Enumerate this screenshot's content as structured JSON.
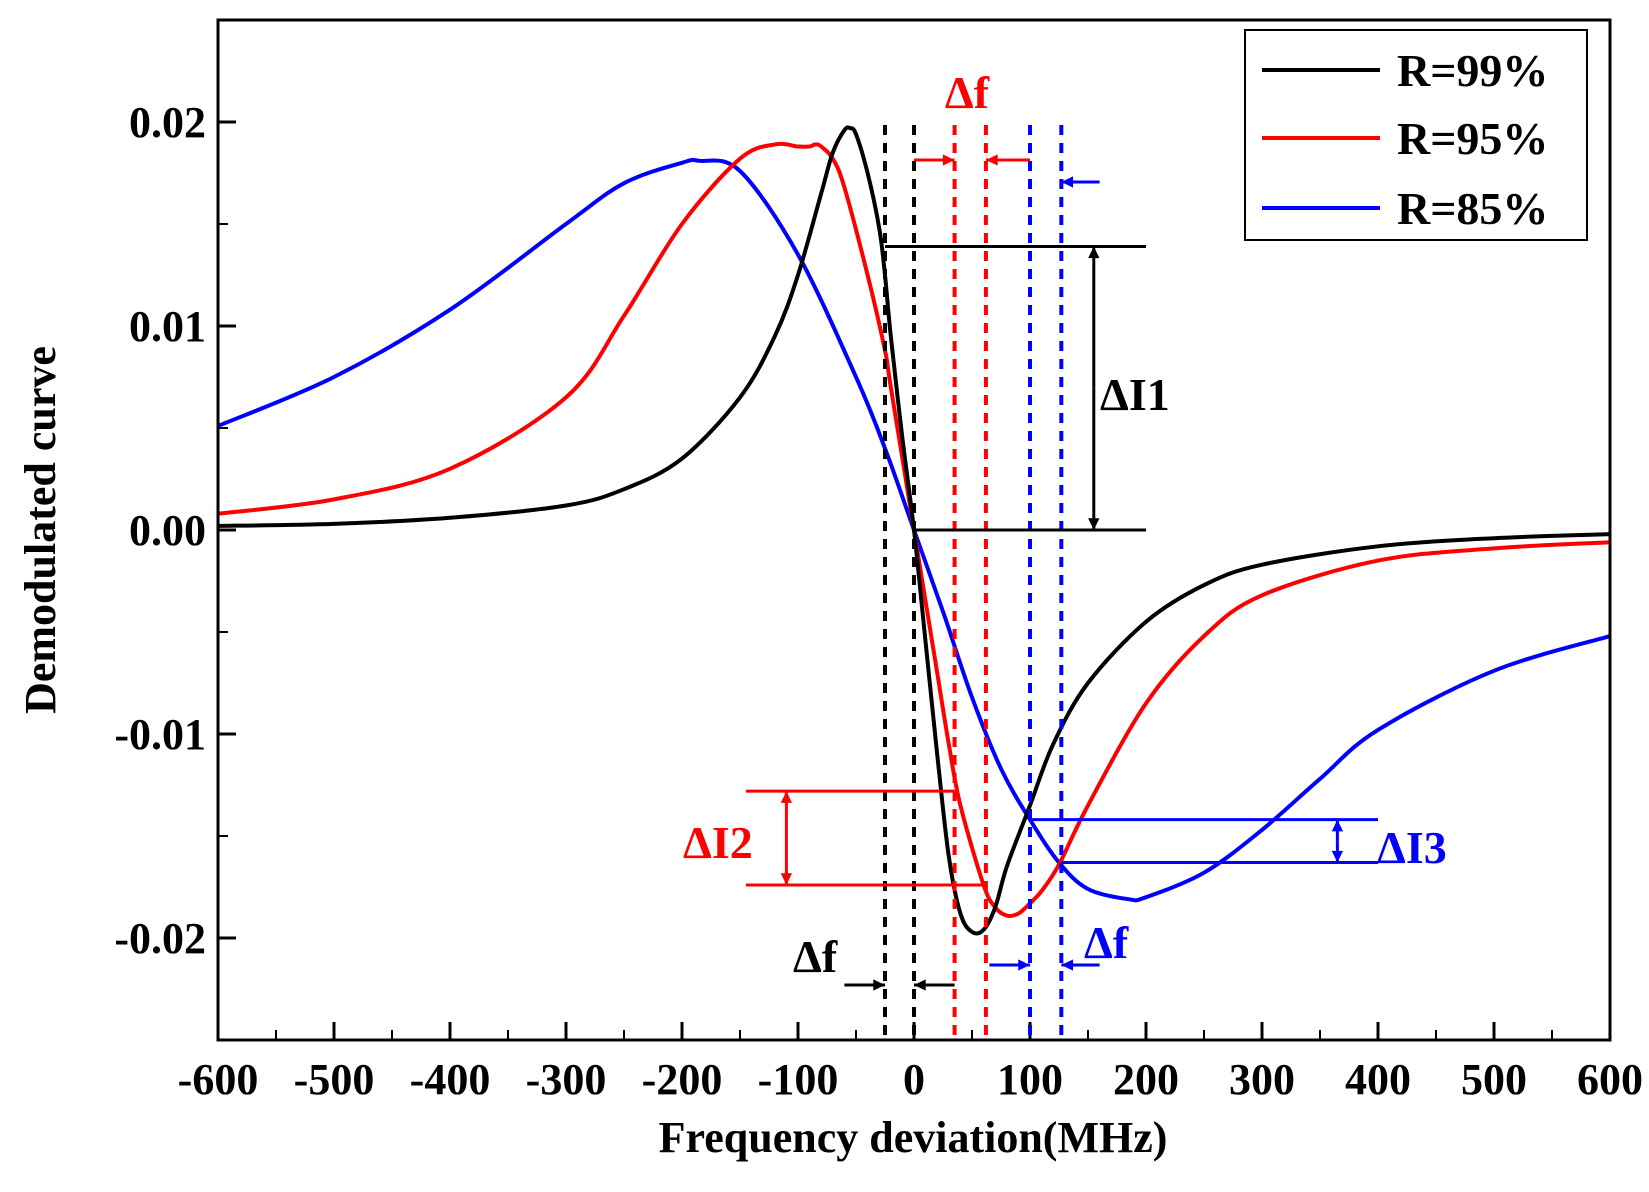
{
  "chart_data": {
    "type": "line",
    "xlabel": "Frequency deviation(MHz)",
    "ylabel": "Demodulated curve",
    "xlim": [
      -600,
      600
    ],
    "ylim": [
      -0.025,
      0.025
    ],
    "xticks": [
      -600,
      -500,
      -400,
      -300,
      -200,
      -100,
      0,
      100,
      200,
      300,
      400,
      500,
      600
    ],
    "xtick_labels": [
      "-600",
      "-500",
      "-400",
      "-300",
      "-200",
      "-100",
      "0",
      "100",
      "200",
      "300",
      "400",
      "500",
      "600"
    ],
    "yticks": [
      -0.02,
      -0.01,
      0.0,
      0.01,
      0.02
    ],
    "ytick_labels": [
      "-0.02",
      "-0.01",
      "0.00",
      "0.01",
      "0.02"
    ],
    "legend_position": "top-right",
    "series": [
      {
        "name": "R=99%",
        "color": "#000000",
        "x": [
          -600,
          -500,
          -400,
          -300,
          -250,
          -200,
          -150,
          -120,
          -100,
          -80,
          -70,
          -60,
          -55,
          -50,
          -40,
          -30,
          -25,
          -20,
          -10,
          0,
          10,
          20,
          30,
          40,
          50,
          60,
          70,
          80,
          100,
          120,
          150,
          200,
          250,
          300,
          400,
          500,
          600
        ],
        "y": [
          0.0002,
          0.0003,
          0.0006,
          0.0012,
          0.002,
          0.0035,
          0.0065,
          0.0095,
          0.0125,
          0.0165,
          0.0185,
          0.0196,
          0.0197,
          0.0194,
          0.0175,
          0.0148,
          0.0125,
          0.0095,
          0.0045,
          0.0,
          -0.0055,
          -0.011,
          -0.016,
          -0.0188,
          -0.0197,
          -0.0196,
          -0.0185,
          -0.0165,
          -0.0135,
          -0.0105,
          -0.0075,
          -0.0045,
          -0.0027,
          -0.0017,
          -0.0008,
          -0.0004,
          -0.0002
        ]
      },
      {
        "name": "R=95%",
        "color": "#ff0000",
        "x": [
          -600,
          -500,
          -400,
          -300,
          -250,
          -200,
          -150,
          -120,
          -100,
          -90,
          -85,
          -80,
          -70,
          -60,
          -40,
          -25,
          -20,
          0,
          20,
          30,
          40,
          60,
          70,
          80,
          90,
          100,
          110,
          125,
          150,
          200,
          250,
          300,
          400,
          500,
          600
        ],
        "y": [
          0.0008,
          0.0015,
          0.003,
          0.0065,
          0.0105,
          0.015,
          0.0182,
          0.0189,
          0.0188,
          0.0188,
          0.0189,
          0.0188,
          0.0182,
          0.0168,
          0.0125,
          0.0088,
          0.007,
          0.0,
          -0.007,
          -0.0105,
          -0.0135,
          -0.0174,
          -0.0185,
          -0.0189,
          -0.0188,
          -0.0183,
          -0.0177,
          -0.0164,
          -0.0135,
          -0.0085,
          -0.0052,
          -0.0032,
          -0.0015,
          -0.0009,
          -0.0006
        ]
      },
      {
        "name": "R=85%",
        "color": "#0000ff",
        "x": [
          -600,
          -500,
          -400,
          -300,
          -250,
          -200,
          -185,
          -150,
          -100,
          -50,
          -25,
          0,
          25,
          50,
          75,
          100,
          125,
          150,
          185,
          200,
          250,
          300,
          350,
          400,
          500,
          600
        ],
        "y": [
          0.0051,
          0.0075,
          0.0108,
          0.015,
          0.017,
          0.018,
          0.0181,
          0.0176,
          0.0135,
          0.0075,
          0.004,
          0.0,
          -0.004,
          -0.0082,
          -0.0117,
          -0.0142,
          -0.0163,
          -0.0176,
          -0.0181,
          -0.018,
          -0.0168,
          -0.0147,
          -0.0122,
          -0.0098,
          -0.0069,
          -0.0052
        ]
      }
    ],
    "annotations": [
      {
        "label": "Δf",
        "color": "#ff0000"
      },
      {
        "label": "ΔI1",
        "color": "#000000"
      },
      {
        "label": "ΔI2",
        "color": "#ff0000"
      },
      {
        "label": "ΔI3",
        "color": "#0000ff"
      },
      {
        "label": "Δf",
        "color": "#000000"
      },
      {
        "label": "Δf",
        "color": "#0000ff"
      }
    ],
    "dashed_lines": [
      {
        "x": -25,
        "color": "#000000"
      },
      {
        "x": 0,
        "color": "#000000"
      },
      {
        "x": 35,
        "color": "#ff0000"
      },
      {
        "x": 62,
        "color": "#ff0000"
      },
      {
        "x": 100,
        "color": "#0000ff"
      },
      {
        "x": 127,
        "color": "#0000ff"
      }
    ]
  }
}
